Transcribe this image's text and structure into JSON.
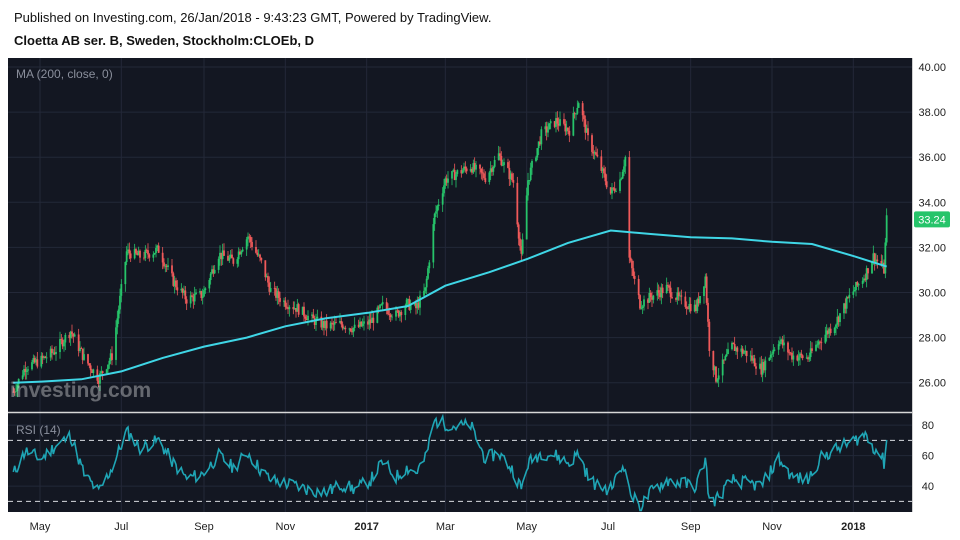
{
  "header": {
    "published": "Published on Investing.com, 26/Jan/2018 - 9:43:23 GMT, Powered by TradingView.",
    "symbol": "Cloetta AB ser. B, Sweden, Stockholm:CLOEb, D"
  },
  "watermark": "investing.com",
  "colors": {
    "background": "#131722",
    "up": "#26c46a",
    "down": "#f05a5a",
    "ma": "#3fd6e6",
    "rsi": "#1fa5b5",
    "price_tag": "#26c46a"
  },
  "chart_data": [
    {
      "type": "candlestick",
      "indicator_label": "MA (200, close, 0)",
      "last_price_label": "33.24",
      "ylim": [
        24.7,
        40.4
      ],
      "y_ticks": [
        "40.00",
        "38.00",
        "36.00",
        "34.00",
        "32.00",
        "30.00",
        "28.00",
        "26.00"
      ],
      "x_ticks": [
        {
          "label": "May",
          "bold": false
        },
        {
          "label": "Jul",
          "bold": false
        },
        {
          "label": "Sep",
          "bold": false
        },
        {
          "label": "Nov",
          "bold": false
        },
        {
          "label": "2017",
          "bold": true
        },
        {
          "label": "Mar",
          "bold": false
        },
        {
          "label": "May",
          "bold": false
        },
        {
          "label": "Jul",
          "bold": false
        },
        {
          "label": "Sep",
          "bold": false
        },
        {
          "label": "Nov",
          "bold": false
        },
        {
          "label": "2018",
          "bold": true
        }
      ],
      "close_path": [
        [
          "2016-04-11",
          25.6
        ],
        [
          "2016-04-20",
          26.7
        ],
        [
          "2016-05-02",
          27.0
        ],
        [
          "2016-05-12",
          27.4
        ],
        [
          "2016-05-24",
          28.3
        ],
        [
          "2016-06-03",
          27.1
        ],
        [
          "2016-06-14",
          26.2
        ],
        [
          "2016-06-24",
          27.2
        ],
        [
          "2016-07-05",
          31.8
        ],
        [
          "2016-07-15",
          31.6
        ],
        [
          "2016-07-29",
          31.9
        ],
        [
          "2016-08-09",
          30.5
        ],
        [
          "2016-08-19",
          29.7
        ],
        [
          "2016-08-31",
          29.9
        ],
        [
          "2016-09-12",
          31.7
        ],
        [
          "2016-09-23",
          31.4
        ],
        [
          "2016-10-04",
          32.5
        ],
        [
          "2016-10-14",
          31.3
        ],
        [
          "2016-10-21",
          30.1
        ],
        [
          "2016-10-31",
          29.6
        ],
        [
          "2016-11-10",
          29.3
        ],
        [
          "2016-11-21",
          28.8
        ],
        [
          "2016-12-02",
          28.5
        ],
        [
          "2016-12-13",
          28.6
        ],
        [
          "2016-12-23",
          28.4
        ],
        [
          "2017-01-04",
          28.7
        ],
        [
          "2017-01-13",
          29.4
        ],
        [
          "2017-01-23",
          29.0
        ],
        [
          "2017-01-31",
          29.5
        ],
        [
          "2017-02-07",
          29.3
        ],
        [
          "2017-02-14",
          30.1
        ],
        [
          "2017-02-21",
          33.4
        ],
        [
          "2017-03-01",
          35.0
        ],
        [
          "2017-03-10",
          35.3
        ],
        [
          "2017-03-20",
          35.6
        ],
        [
          "2017-03-31",
          35.1
        ],
        [
          "2017-04-10",
          36.1
        ],
        [
          "2017-04-21",
          34.9
        ],
        [
          "2017-04-27",
          31.5
        ],
        [
          "2017-05-02",
          35.0
        ],
        [
          "2017-05-12",
          37.0
        ],
        [
          "2017-05-23",
          37.6
        ],
        [
          "2017-06-02",
          37.2
        ],
        [
          "2017-06-09",
          38.5
        ],
        [
          "2017-06-16",
          36.8
        ],
        [
          "2017-06-23",
          35.9
        ],
        [
          "2017-07-03",
          34.4
        ],
        [
          "2017-07-10",
          35.0
        ],
        [
          "2017-07-14",
          36.0
        ],
        [
          "2017-07-17",
          31.5
        ],
        [
          "2017-07-25",
          29.5
        ],
        [
          "2017-08-02",
          29.8
        ],
        [
          "2017-08-14",
          30.2
        ],
        [
          "2017-08-25",
          29.6
        ],
        [
          "2017-09-05",
          29.3
        ],
        [
          "2017-09-12",
          30.7
        ],
        [
          "2017-09-15",
          27.6
        ],
        [
          "2017-09-20",
          26.2
        ],
        [
          "2017-10-02",
          27.6
        ],
        [
          "2017-10-13",
          27.3
        ],
        [
          "2017-10-24",
          26.6
        ],
        [
          "2017-11-06",
          27.9
        ],
        [
          "2017-11-16",
          27.2
        ],
        [
          "2017-11-28",
          27.1
        ],
        [
          "2017-12-07",
          27.9
        ],
        [
          "2017-12-18",
          28.6
        ],
        [
          "2017-12-29",
          29.8
        ],
        [
          "2018-01-10",
          30.8
        ],
        [
          "2018-01-16",
          31.6
        ],
        [
          "2018-01-22",
          31.2
        ],
        [
          "2018-01-24",
          31.0
        ],
        [
          "2018-01-26",
          33.24
        ]
      ],
      "ma_path": [
        [
          "2016-04-11",
          26.0
        ],
        [
          "2016-05-02",
          26.05
        ],
        [
          "2016-06-01",
          26.15
        ],
        [
          "2016-07-01",
          26.5
        ],
        [
          "2016-08-01",
          27.1
        ],
        [
          "2016-09-01",
          27.6
        ],
        [
          "2016-10-03",
          28.0
        ],
        [
          "2016-11-01",
          28.5
        ],
        [
          "2016-12-01",
          28.85
        ],
        [
          "2017-01-02",
          29.1
        ],
        [
          "2017-02-01",
          29.4
        ],
        [
          "2017-03-01",
          30.3
        ],
        [
          "2017-04-03",
          30.9
        ],
        [
          "2017-05-02",
          31.5
        ],
        [
          "2017-06-01",
          32.2
        ],
        [
          "2017-07-03",
          32.75
        ],
        [
          "2017-08-01",
          32.6
        ],
        [
          "2017-09-01",
          32.45
        ],
        [
          "2017-10-02",
          32.4
        ],
        [
          "2017-11-01",
          32.25
        ],
        [
          "2017-12-01",
          32.15
        ],
        [
          "2018-01-02",
          31.6
        ],
        [
          "2018-01-26",
          31.15
        ]
      ]
    },
    {
      "type": "line",
      "indicator_label": "RSI (14)",
      "ylim": [
        23,
        88
      ],
      "y_ticks": [
        "80",
        "60",
        "40"
      ],
      "reference_lines": [
        70,
        30
      ],
      "rsi_path": [
        [
          "2016-04-11",
          48
        ],
        [
          "2016-04-20",
          63
        ],
        [
          "2016-05-02",
          58
        ],
        [
          "2016-05-12",
          66
        ],
        [
          "2016-05-24",
          73
        ],
        [
          "2016-06-03",
          48
        ],
        [
          "2016-06-14",
          36
        ],
        [
          "2016-06-24",
          52
        ],
        [
          "2016-07-05",
          76
        ],
        [
          "2016-07-15",
          65
        ],
        [
          "2016-07-29",
          70
        ],
        [
          "2016-08-09",
          55
        ],
        [
          "2016-08-19",
          45
        ],
        [
          "2016-08-31",
          48
        ],
        [
          "2016-09-12",
          60
        ],
        [
          "2016-09-23",
          52
        ],
        [
          "2016-10-04",
          62
        ],
        [
          "2016-10-14",
          50
        ],
        [
          "2016-10-21",
          44
        ],
        [
          "2016-10-31",
          42
        ],
        [
          "2016-11-10",
          40
        ],
        [
          "2016-11-21",
          37
        ],
        [
          "2016-12-02",
          36
        ],
        [
          "2016-12-13",
          41
        ],
        [
          "2016-12-23",
          38
        ],
        [
          "2017-01-04",
          44
        ],
        [
          "2017-01-13",
          56
        ],
        [
          "2017-01-23",
          46
        ],
        [
          "2017-01-31",
          52
        ],
        [
          "2017-02-07",
          49
        ],
        [
          "2017-02-14",
          58
        ],
        [
          "2017-02-21",
          83
        ],
        [
          "2017-03-01",
          81
        ],
        [
          "2017-03-10",
          79
        ],
        [
          "2017-03-20",
          80
        ],
        [
          "2017-03-31",
          58
        ],
        [
          "2017-04-10",
          62
        ],
        [
          "2017-04-21",
          50
        ],
        [
          "2017-04-27",
          38
        ],
        [
          "2017-05-02",
          55
        ],
        [
          "2017-05-12",
          62
        ],
        [
          "2017-05-23",
          60
        ],
        [
          "2017-06-02",
          55
        ],
        [
          "2017-06-09",
          62
        ],
        [
          "2017-06-16",
          46
        ],
        [
          "2017-06-23",
          40
        ],
        [
          "2017-07-03",
          38
        ],
        [
          "2017-07-10",
          50
        ],
        [
          "2017-07-14",
          55
        ],
        [
          "2017-07-17",
          36
        ],
        [
          "2017-07-25",
          26
        ],
        [
          "2017-08-02",
          36
        ],
        [
          "2017-08-14",
          44
        ],
        [
          "2017-08-25",
          42
        ],
        [
          "2017-09-05",
          40
        ],
        [
          "2017-09-12",
          58
        ],
        [
          "2017-09-15",
          30
        ],
        [
          "2017-09-20",
          31
        ],
        [
          "2017-10-02",
          44
        ],
        [
          "2017-10-13",
          42
        ],
        [
          "2017-10-24",
          40
        ],
        [
          "2017-11-06",
          58
        ],
        [
          "2017-11-16",
          46
        ],
        [
          "2017-11-28",
          44
        ],
        [
          "2017-12-07",
          58
        ],
        [
          "2017-12-18",
          64
        ],
        [
          "2017-12-29",
          68
        ],
        [
          "2018-01-10",
          74
        ],
        [
          "2018-01-16",
          66
        ],
        [
          "2018-01-22",
          60
        ],
        [
          "2018-01-24",
          55
        ],
        [
          "2018-01-26",
          71
        ]
      ]
    }
  ]
}
